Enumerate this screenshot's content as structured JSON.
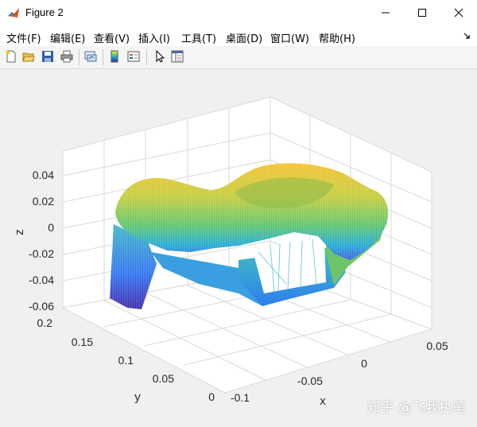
{
  "window": {
    "title": "Figure 2"
  },
  "menu": {
    "items": [
      "文件(F)",
      "编辑(E)",
      "查看(V)",
      "插入(I)",
      "工具(T)",
      "桌面(D)",
      "窗口(W)",
      "帮助(H)"
    ]
  },
  "toolbar": {
    "icons": [
      "new-figure-icon",
      "open-file-icon",
      "save-icon",
      "print-icon",
      "link-plot-icon",
      "insert-colorbar-icon",
      "insert-legend-icon",
      "edit-plot-icon",
      "property-inspector-icon"
    ]
  },
  "plot": {
    "zticks": [
      "0.04",
      "0.02",
      "0",
      "-0.02",
      "-0.04",
      "-0.06"
    ],
    "yticks": [
      "0.2",
      "0.15",
      "0.1",
      "0.05",
      "0"
    ],
    "xticks": [
      "-0.1",
      "-0.05",
      "0",
      "0.05"
    ],
    "xlabel": "x",
    "ylabel": "y",
    "zlabel": "z",
    "colormap": [
      "#3e26a8",
      "#2e87f7",
      "#18b8c9",
      "#7ccf5a",
      "#f5c22c",
      "#f9fb0e"
    ]
  },
  "watermark": "知乎 @飞我执笔"
}
